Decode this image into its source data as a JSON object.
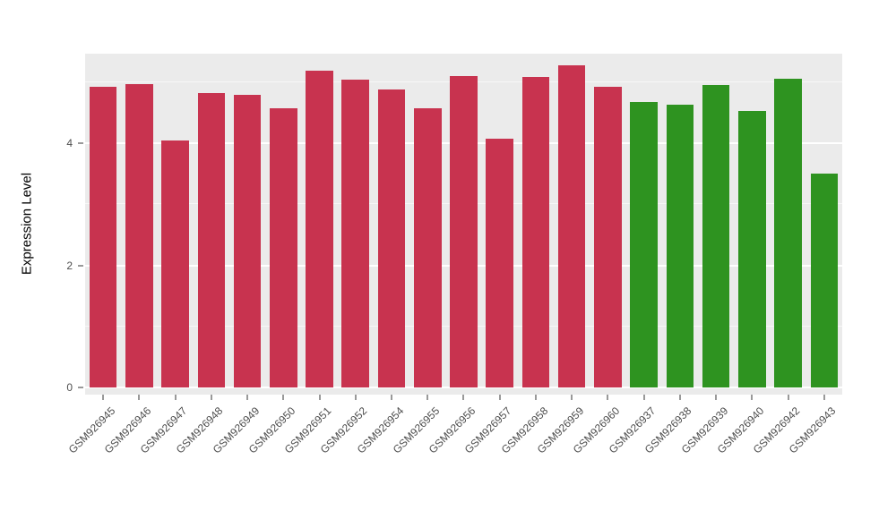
{
  "chart_data": {
    "type": "bar",
    "title": "",
    "xlabel": "",
    "ylabel": "Expression Level",
    "ylim": [
      0,
      5.47
    ],
    "yticks": [
      0,
      2,
      4
    ],
    "yticks_minor": [
      1,
      3,
      5
    ],
    "grid": "on",
    "legend": "none",
    "panel_background": "#EBEBEB",
    "categories": [
      "GSM926945",
      "GSM926946",
      "GSM926947",
      "GSM926948",
      "GSM926949",
      "GSM926950",
      "GSM926951",
      "GSM926952",
      "GSM926954",
      "GSM926955",
      "GSM926956",
      "GSM926957",
      "GSM926958",
      "GSM926959",
      "GSM926960",
      "GSM926937",
      "GSM926938",
      "GSM926939",
      "GSM926940",
      "GSM926942",
      "GSM926943"
    ],
    "values": [
      4.93,
      4.97,
      4.05,
      4.83,
      4.79,
      4.58,
      5.19,
      5.05,
      4.88,
      4.58,
      5.11,
      4.08,
      5.09,
      5.28,
      4.93,
      4.68,
      4.64,
      4.96,
      4.53,
      5.06,
      3.5
    ],
    "groups": [
      "red",
      "red",
      "red",
      "red",
      "red",
      "red",
      "red",
      "red",
      "red",
      "red",
      "red",
      "red",
      "red",
      "red",
      "red",
      "green",
      "green",
      "green",
      "green",
      "green",
      "green"
    ],
    "palette": {
      "red": "#C8334F",
      "green": "#2E9320"
    }
  }
}
